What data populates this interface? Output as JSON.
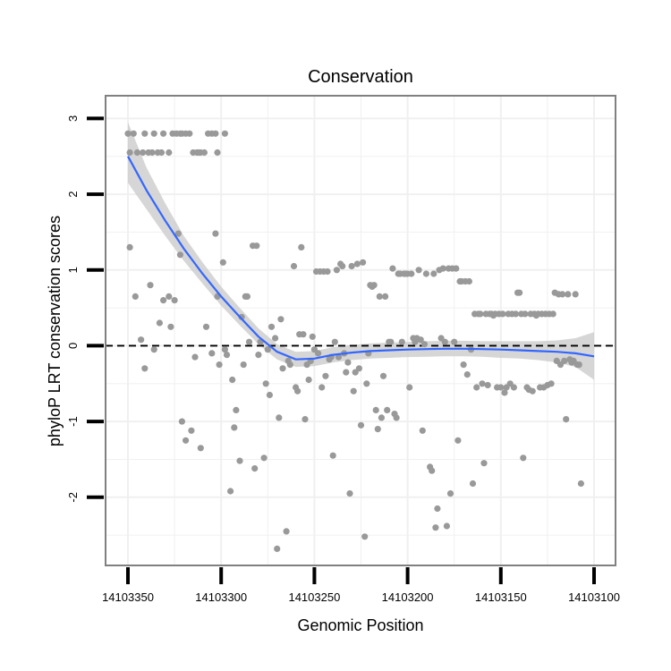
{
  "chart_data": {
    "type": "scatter",
    "title": "Conservation",
    "xlabel": "Genomic Position",
    "ylabel": "phyloP LRT conservation scores",
    "x_reversed": true,
    "xlim": [
      14103350,
      14103100
    ],
    "ylim": [
      -2.9,
      3.3
    ],
    "x_ticks": [
      14103350,
      14103300,
      14103250,
      14103200,
      14103150,
      14103100
    ],
    "x_tick_labels": [
      "14103350",
      "14103300",
      "14103250",
      "14103200",
      "14103150",
      "14103100"
    ],
    "y_ticks": [
      -2,
      -1,
      0,
      1,
      2,
      3
    ],
    "y_tick_labels": [
      "-2",
      "-1",
      "0",
      "1",
      "2",
      "3"
    ],
    "grid": true,
    "reference_line": {
      "y": 0,
      "style": "dashed"
    },
    "colors": {
      "points": "#999999",
      "smooth": "#3366ff",
      "band": "#cccccc",
      "panel_border": "#808080",
      "grid": "#f0f0f0"
    },
    "series": [
      {
        "name": "phyloP scores",
        "kind": "points",
        "points": [
          [
            14103350,
            2.8
          ],
          [
            14103349,
            2.55
          ],
          [
            14103347,
            2.8
          ],
          [
            14103345,
            2.55
          ],
          [
            14103342,
            2.55
          ],
          [
            14103341,
            2.8
          ],
          [
            14103339,
            2.55
          ],
          [
            14103337,
            2.55
          ],
          [
            14103336,
            2.8
          ],
          [
            14103334,
            2.55
          ],
          [
            14103332,
            2.55
          ],
          [
            14103331,
            2.8
          ],
          [
            14103328,
            2.55
          ],
          [
            14103326,
            2.8
          ],
          [
            14103324,
            2.8
          ],
          [
            14103322,
            2.8
          ],
          [
            14103321,
            2.8
          ],
          [
            14103319,
            2.8
          ],
          [
            14103317,
            2.8
          ],
          [
            14103315,
            2.55
          ],
          [
            14103313,
            2.55
          ],
          [
            14103312,
            2.55
          ],
          [
            14103311,
            2.55
          ],
          [
            14103309,
            2.55
          ],
          [
            14103307,
            2.8
          ],
          [
            14103305,
            2.8
          ],
          [
            14103303,
            2.8
          ],
          [
            14103302,
            2.55
          ],
          [
            14103298,
            2.8
          ],
          [
            14103349,
            1.3
          ],
          [
            14103346,
            0.65
          ],
          [
            14103343,
            0.08
          ],
          [
            14103341,
            -0.3
          ],
          [
            14103338,
            0.8
          ],
          [
            14103336,
            -0.05
          ],
          [
            14103333,
            0.3
          ],
          [
            14103331,
            0.6
          ],
          [
            14103328,
            0.65
          ],
          [
            14103327,
            0.25
          ],
          [
            14103325,
            0.6
          ],
          [
            14103323,
            1.48
          ],
          [
            14103322,
            1.2
          ],
          [
            14103321,
            -1.0
          ],
          [
            14103319,
            -1.25
          ],
          [
            14103316,
            -1.12
          ],
          [
            14103314,
            -0.15
          ],
          [
            14103311,
            -1.35
          ],
          [
            14103308,
            0.25
          ],
          [
            14103305,
            -0.1
          ],
          [
            14103303,
            1.48
          ],
          [
            14103302,
            0.65
          ],
          [
            14103301,
            -0.25
          ],
          [
            14103299,
            1.1
          ],
          [
            14103298,
            -0.05
          ],
          [
            14103297,
            -0.12
          ],
          [
            14103295,
            -1.92
          ],
          [
            14103294,
            -0.45
          ],
          [
            14103293,
            -1.08
          ],
          [
            14103292,
            -0.85
          ],
          [
            14103290,
            -1.52
          ],
          [
            14103289,
            0.38
          ],
          [
            14103288,
            -0.25
          ],
          [
            14103287,
            0.65
          ],
          [
            14103286,
            0.65
          ],
          [
            14103285,
            0.05
          ],
          [
            14103283,
            1.32
          ],
          [
            14103282,
            -1.62
          ],
          [
            14103281,
            1.32
          ],
          [
            14103280,
            -0.12
          ],
          [
            14103279,
            0.05
          ],
          [
            14103277,
            -1.48
          ],
          [
            14103276,
            -0.5
          ],
          [
            14103275,
            -0.05
          ],
          [
            14103274,
            -0.65
          ],
          [
            14103273,
            0.25
          ],
          [
            14103271,
            0.1
          ],
          [
            14103270,
            -2.68
          ],
          [
            14103269,
            -0.95
          ],
          [
            14103268,
            0.35
          ],
          [
            14103267,
            -0.3
          ],
          [
            14103265,
            -2.45
          ],
          [
            14103264,
            -0.2
          ],
          [
            14103263,
            -0.25
          ],
          [
            14103261,
            1.05
          ],
          [
            14103260,
            -0.55
          ],
          [
            14103259,
            -0.6
          ],
          [
            14103258,
            0.15
          ],
          [
            14103257,
            1.3
          ],
          [
            14103256,
            0.15
          ],
          [
            14103255,
            -0.97
          ],
          [
            14103254,
            -0.25
          ],
          [
            14103253,
            -0.45
          ],
          [
            14103252,
            -0.2
          ],
          [
            14103251,
            0.12
          ],
          [
            14103250,
            -0.05
          ],
          [
            14103249,
            0.98
          ],
          [
            14103248,
            -0.1
          ],
          [
            14103247,
            0.98
          ],
          [
            14103246,
            -0.55
          ],
          [
            14103245,
            0.98
          ],
          [
            14103244,
            -0.4
          ],
          [
            14103243,
            0.98
          ],
          [
            14103242,
            -0.18
          ],
          [
            14103241,
            -0.15
          ],
          [
            14103240,
            -1.45
          ],
          [
            14103239,
            0.05
          ],
          [
            14103238,
            1.0
          ],
          [
            14103237,
            -0.15
          ],
          [
            14103236,
            1.08
          ],
          [
            14103235,
            1.05
          ],
          [
            14103234,
            -0.1
          ],
          [
            14103233,
            -0.35
          ],
          [
            14103232,
            -0.22
          ],
          [
            14103231,
            -1.95
          ],
          [
            14103230,
            1.05
          ],
          [
            14103229,
            -0.6
          ],
          [
            14103228,
            -0.35
          ],
          [
            14103227,
            1.08
          ],
          [
            14103226,
            -0.3
          ],
          [
            14103225,
            -1.05
          ],
          [
            14103224,
            1.1
          ],
          [
            14103223,
            -2.52
          ],
          [
            14103222,
            -0.5
          ],
          [
            14103221,
            -0.1
          ],
          [
            14103220,
            0.8
          ],
          [
            14103219,
            0.78
          ],
          [
            14103218,
            0.8
          ],
          [
            14103217,
            -0.85
          ],
          [
            14103216,
            -1.1
          ],
          [
            14103215,
            0.65
          ],
          [
            14103214,
            -0.95
          ],
          [
            14103213,
            -0.4
          ],
          [
            14103212,
            0.65
          ],
          [
            14103211,
            -0.85
          ],
          [
            14103210,
            0.05
          ],
          [
            14103209,
            0.05
          ],
          [
            14103208,
            1.02
          ],
          [
            14103207,
            -0.9
          ],
          [
            14103206,
            -0.95
          ],
          [
            14103205,
            0.95
          ],
          [
            14103204,
            0.95
          ],
          [
            14103203,
            0.05
          ],
          [
            14103202,
            0.95
          ],
          [
            14103201,
            0.95
          ],
          [
            14103200,
            0.95
          ],
          [
            14103199,
            -0.55
          ],
          [
            14103198,
            0.95
          ],
          [
            14103197,
            0.1
          ],
          [
            14103196,
            0.05
          ],
          [
            14103195,
            0.1
          ],
          [
            14103194,
            1.0
          ],
          [
            14103193,
            0.08
          ],
          [
            14103192,
            -1.12
          ],
          [
            14103191,
            0.02
          ],
          [
            14103190,
            0.95
          ],
          [
            14103188,
            -1.6
          ],
          [
            14103187,
            -1.65
          ],
          [
            14103186,
            0.95
          ],
          [
            14103185,
            -2.4
          ],
          [
            14103184,
            -2.15
          ],
          [
            14103183,
            1.0
          ],
          [
            14103182,
            0.1
          ],
          [
            14103181,
            1.02
          ],
          [
            14103180,
            0.05
          ],
          [
            14103179,
            -2.38
          ],
          [
            14103178,
            1.02
          ],
          [
            14103177,
            -1.95
          ],
          [
            14103176,
            1.02
          ],
          [
            14103175,
            0.05
          ],
          [
            14103174,
            1.02
          ],
          [
            14103173,
            -1.25
          ],
          [
            14103172,
            0.85
          ],
          [
            14103171,
            0.85
          ],
          [
            14103170,
            -0.25
          ],
          [
            14103169,
            0.85
          ],
          [
            14103168,
            -0.38
          ],
          [
            14103167,
            0.85
          ],
          [
            14103166,
            -0.05
          ],
          [
            14103165,
            -1.82
          ],
          [
            14103164,
            0.42
          ],
          [
            14103163,
            -0.55
          ],
          [
            14103162,
            0.42
          ],
          [
            14103161,
            0.42
          ],
          [
            14103160,
            -0.5
          ],
          [
            14103159,
            -1.55
          ],
          [
            14103158,
            0.42
          ],
          [
            14103157,
            -0.52
          ],
          [
            14103156,
            0.42
          ],
          [
            14103155,
            0.42
          ],
          [
            14103154,
            0.4
          ],
          [
            14103153,
            0.42
          ],
          [
            14103152,
            -0.55
          ],
          [
            14103151,
            0.42
          ],
          [
            14103150,
            -0.55
          ],
          [
            14103149,
            0.42
          ],
          [
            14103148,
            -0.62
          ],
          [
            14103147,
            -0.55
          ],
          [
            14103146,
            0.42
          ],
          [
            14103145,
            -0.5
          ],
          [
            14103144,
            0.42
          ],
          [
            14103143,
            -0.55
          ],
          [
            14103142,
            0.42
          ],
          [
            14103141,
            0.7
          ],
          [
            14103140,
            0.7
          ],
          [
            14103139,
            0.42
          ],
          [
            14103138,
            -1.48
          ],
          [
            14103137,
            0.42
          ],
          [
            14103136,
            -0.55
          ],
          [
            14103135,
            -0.58
          ],
          [
            14103134,
            0.42
          ],
          [
            14103133,
            -0.6
          ],
          [
            14103132,
            0.42
          ],
          [
            14103131,
            0.4
          ],
          [
            14103130,
            0.42
          ],
          [
            14103129,
            -0.55
          ],
          [
            14103128,
            0.42
          ],
          [
            14103127,
            -0.55
          ],
          [
            14103126,
            0.42
          ],
          [
            14103125,
            -0.52
          ],
          [
            14103124,
            0.42
          ],
          [
            14103123,
            -0.5
          ],
          [
            14103122,
            0.42
          ],
          [
            14103121,
            0.7
          ],
          [
            14103120,
            -0.2
          ],
          [
            14103119,
            0.68
          ],
          [
            14103118,
            -0.25
          ],
          [
            14103117,
            0.68
          ],
          [
            14103116,
            -0.2
          ],
          [
            14103115,
            -0.97
          ],
          [
            14103114,
            0.68
          ],
          [
            14103113,
            -0.18
          ],
          [
            14103112,
            -0.22
          ],
          [
            14103111,
            -0.2
          ],
          [
            14103110,
            0.68
          ],
          [
            14103109,
            -0.25
          ],
          [
            14103108,
            -0.25
          ],
          [
            14103107,
            -1.82
          ]
        ]
      },
      {
        "name": "loess fit",
        "kind": "smooth",
        "x": [
          14103350,
          14103340,
          14103330,
          14103320,
          14103310,
          14103300,
          14103290,
          14103280,
          14103270,
          14103260,
          14103250,
          14103240,
          14103230,
          14103220,
          14103210,
          14103200,
          14103190,
          14103180,
          14103170,
          14103160,
          14103150,
          14103140,
          14103130,
          14103120,
          14103110,
          14103100
        ],
        "y": [
          2.5,
          2.05,
          1.65,
          1.28,
          0.95,
          0.65,
          0.38,
          0.12,
          -0.08,
          -0.18,
          -0.17,
          -0.12,
          -0.09,
          -0.07,
          -0.06,
          -0.05,
          -0.045,
          -0.04,
          -0.04,
          -0.045,
          -0.05,
          -0.06,
          -0.07,
          -0.08,
          -0.1,
          -0.14
        ],
        "lower": [
          2.15,
          1.8,
          1.45,
          1.12,
          0.82,
          0.53,
          0.27,
          0.02,
          -0.18,
          -0.28,
          -0.27,
          -0.22,
          -0.19,
          -0.17,
          -0.16,
          -0.15,
          -0.145,
          -0.14,
          -0.14,
          -0.145,
          -0.16,
          -0.17,
          -0.19,
          -0.22,
          -0.28,
          -0.45
        ],
        "upper": [
          2.95,
          2.35,
          1.88,
          1.45,
          1.1,
          0.78,
          0.5,
          0.23,
          0.02,
          -0.08,
          -0.07,
          -0.02,
          0.01,
          0.03,
          0.04,
          0.05,
          0.06,
          0.065,
          0.065,
          0.06,
          0.06,
          0.06,
          0.06,
          0.07,
          0.1,
          0.18
        ]
      }
    ]
  }
}
